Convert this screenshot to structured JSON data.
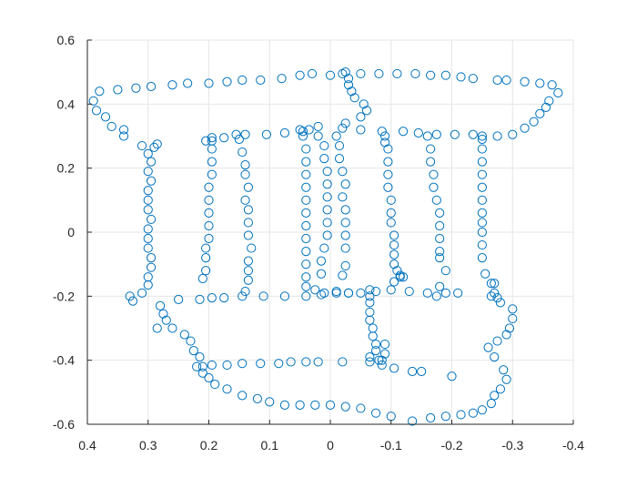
{
  "colors": {
    "background": "#ffffff",
    "axis": "#262626",
    "grid": "#e6e6e6",
    "marker": "#0072bd"
  },
  "chart_data": {
    "type": "scatter",
    "title": "",
    "xlabel": "",
    "ylabel": "",
    "xlim": [
      0.4,
      -0.4
    ],
    "ylim": [
      0.6,
      -0.6
    ],
    "x_reversed": true,
    "y_reversed": true,
    "grid": true,
    "marker": "circle",
    "x_ticks": [
      0.4,
      0.3,
      0.2,
      0.1,
      0,
      -0.1,
      -0.2,
      -0.3,
      -0.4
    ],
    "y_ticks": [
      -0.6,
      -0.4,
      -0.2,
      0,
      0.2,
      0.4,
      0.6
    ],
    "x_tick_labels": [
      "0.4",
      "0.3",
      "0.2",
      "0.1",
      "0",
      "-0.1",
      "-0.2",
      "-0.3",
      "-0.4"
    ],
    "y_tick_labels": [
      "-0.6",
      "-0.4",
      "-0.2",
      "0",
      "0.2",
      "0.4",
      "0.6"
    ],
    "points": [
      [
        0.385,
        0.38
      ],
      [
        0.39,
        0.41
      ],
      [
        0.38,
        0.44
      ],
      [
        0.37,
        0.36
      ],
      [
        0.36,
        0.33
      ],
      [
        0.34,
        0.3
      ],
      [
        0.34,
        0.32
      ],
      [
        0.31,
        0.27
      ],
      [
        0.285,
        0.275
      ],
      [
        0.35,
        0.445
      ],
      [
        0.32,
        0.45
      ],
      [
        0.295,
        0.455
      ],
      [
        0.26,
        0.46
      ],
      [
        0.235,
        0.465
      ],
      [
        0.2,
        0.465
      ],
      [
        0.17,
        0.47
      ],
      [
        0.145,
        0.475
      ],
      [
        0.115,
        0.475
      ],
      [
        0.08,
        0.48
      ],
      [
        0.05,
        0.49
      ],
      [
        0.03,
        0.495
      ],
      [
        0.0,
        0.49
      ],
      [
        -0.02,
        0.495
      ],
      [
        -0.05,
        0.495
      ],
      [
        -0.08,
        0.495
      ],
      [
        -0.11,
        0.495
      ],
      [
        -0.14,
        0.495
      ],
      [
        -0.165,
        0.49
      ],
      [
        -0.19,
        0.49
      ],
      [
        -0.215,
        0.485
      ],
      [
        -0.235,
        0.48
      ],
      [
        -0.275,
        0.475
      ],
      [
        -0.29,
        0.475
      ],
      [
        -0.32,
        0.47
      ],
      [
        -0.345,
        0.465
      ],
      [
        -0.365,
        0.46
      ],
      [
        -0.375,
        0.435
      ],
      [
        -0.36,
        0.41
      ],
      [
        -0.355,
        0.39
      ],
      [
        -0.345,
        0.37
      ],
      [
        -0.335,
        0.345
      ],
      [
        -0.32,
        0.325
      ],
      [
        -0.3,
        0.305
      ],
      [
        -0.275,
        0.3
      ],
      [
        -0.25,
        0.3
      ],
      [
        -0.235,
        0.305
      ],
      [
        0.205,
        0.285
      ],
      [
        0.195,
        0.295
      ],
      [
        0.175,
        0.295
      ],
      [
        0.155,
        0.305
      ],
      [
        0.14,
        0.305
      ],
      [
        0.105,
        0.305
      ],
      [
        0.075,
        0.31
      ],
      [
        0.045,
        0.315
      ],
      [
        0.035,
        0.32
      ],
      [
        0.02,
        0.33
      ],
      [
        -0.02,
        0.325
      ],
      [
        -0.05,
        0.32
      ],
      [
        -0.085,
        0.315
      ],
      [
        -0.12,
        0.315
      ],
      [
        -0.145,
        0.31
      ],
      [
        -0.175,
        0.305
      ],
      [
        -0.205,
        0.305
      ],
      [
        0.33,
        -0.2
      ],
      [
        0.325,
        -0.215
      ],
      [
        0.31,
        -0.19
      ],
      [
        0.3,
        -0.165
      ],
      [
        0.3,
        -0.14
      ],
      [
        0.295,
        -0.11
      ],
      [
        0.295,
        -0.08
      ],
      [
        0.3,
        -0.05
      ],
      [
        0.3,
        -0.02
      ],
      [
        0.3,
        0.01
      ],
      [
        0.295,
        0.04
      ],
      [
        0.3,
        0.07
      ],
      [
        0.3,
        0.1
      ],
      [
        0.3,
        0.13
      ],
      [
        0.295,
        0.16
      ],
      [
        0.3,
        0.19
      ],
      [
        0.295,
        0.22
      ],
      [
        0.3,
        0.245
      ],
      [
        0.29,
        0.265
      ],
      [
        0.28,
        -0.23
      ],
      [
        0.275,
        -0.255
      ],
      [
        0.27,
        -0.275
      ],
      [
        0.285,
        -0.3
      ],
      [
        0.26,
        -0.3
      ],
      [
        0.25,
        -0.21
      ],
      [
        0.215,
        -0.21
      ],
      [
        0.195,
        -0.205
      ],
      [
        0.175,
        -0.205
      ],
      [
        0.145,
        -0.2
      ],
      [
        0.11,
        -0.2
      ],
      [
        0.075,
        -0.2
      ],
      [
        0.04,
        -0.2
      ],
      [
        0.015,
        -0.195
      ],
      [
        -0.01,
        -0.19
      ],
      [
        -0.03,
        -0.19
      ],
      [
        -0.05,
        -0.19
      ],
      [
        -0.075,
        -0.185
      ],
      [
        -0.1,
        -0.18
      ],
      [
        -0.13,
        -0.185
      ],
      [
        -0.16,
        -0.19
      ],
      [
        -0.19,
        -0.19
      ],
      [
        -0.21,
        -0.19
      ],
      [
        0.24,
        -0.32
      ],
      [
        0.23,
        -0.34
      ],
      [
        0.225,
        -0.37
      ],
      [
        0.215,
        -0.39
      ],
      [
        0.22,
        -0.42
      ],
      [
        0.21,
        -0.44
      ],
      [
        0.2,
        -0.455
      ],
      [
        0.19,
        -0.475
      ],
      [
        0.17,
        -0.49
      ],
      [
        0.145,
        -0.51
      ],
      [
        0.12,
        -0.52
      ],
      [
        0.1,
        -0.53
      ],
      [
        0.075,
        -0.54
      ],
      [
        0.05,
        -0.54
      ],
      [
        0.025,
        -0.54
      ],
      [
        0.0,
        -0.54
      ],
      [
        -0.025,
        -0.545
      ],
      [
        -0.05,
        -0.55
      ],
      [
        -0.075,
        -0.565
      ],
      [
        -0.1,
        -0.575
      ],
      [
        -0.135,
        -0.59
      ],
      [
        -0.165,
        -0.58
      ],
      [
        -0.19,
        -0.575
      ],
      [
        -0.215,
        -0.57
      ],
      [
        -0.235,
        -0.565
      ],
      [
        -0.25,
        -0.555
      ],
      [
        -0.265,
        -0.535
      ],
      [
        -0.27,
        -0.51
      ],
      [
        -0.28,
        -0.49
      ],
      [
        -0.29,
        -0.46
      ],
      [
        -0.285,
        -0.43
      ],
      [
        -0.27,
        -0.39
      ],
      [
        -0.26,
        -0.36
      ],
      [
        -0.275,
        -0.34
      ],
      [
        -0.29,
        -0.32
      ],
      [
        -0.295,
        -0.3
      ],
      [
        -0.3,
        -0.27
      ],
      [
        -0.3,
        -0.24
      ],
      [
        -0.28,
        -0.22
      ],
      [
        -0.275,
        -0.205
      ],
      [
        -0.27,
        -0.19
      ],
      [
        -0.265,
        -0.16
      ],
      [
        -0.2,
        -0.45
      ],
      [
        -0.15,
        -0.435
      ],
      [
        -0.135,
        -0.435
      ],
      [
        -0.105,
        -0.425
      ],
      [
        -0.085,
        -0.415
      ],
      [
        0.21,
        -0.42
      ],
      [
        0.195,
        -0.415
      ],
      [
        0.17,
        -0.415
      ],
      [
        0.145,
        -0.41
      ],
      [
        0.115,
        -0.41
      ],
      [
        0.085,
        -0.41
      ],
      [
        0.065,
        -0.405
      ],
      [
        0.04,
        -0.405
      ],
      [
        0.02,
        -0.405
      ],
      [
        -0.02,
        -0.405
      ],
      [
        -0.065,
        -0.405
      ],
      [
        -0.08,
        -0.4
      ],
      [
        0.21,
        -0.145
      ],
      [
        0.205,
        -0.12
      ],
      [
        0.205,
        -0.08
      ],
      [
        0.205,
        -0.05
      ],
      [
        0.2,
        -0.02
      ],
      [
        0.2,
        0.02
      ],
      [
        0.2,
        0.06
      ],
      [
        0.2,
        0.1
      ],
      [
        0.2,
        0.14
      ],
      [
        0.195,
        0.18
      ],
      [
        0.195,
        0.22
      ],
      [
        0.195,
        0.26
      ],
      [
        0.195,
        0.285
      ],
      [
        0.14,
        -0.185
      ],
      [
        0.135,
        -0.15
      ],
      [
        0.135,
        -0.12
      ],
      [
        0.135,
        -0.09
      ],
      [
        0.13,
        -0.05
      ],
      [
        0.135,
        -0.01
      ],
      [
        0.135,
        0.03
      ],
      [
        0.135,
        0.07
      ],
      [
        0.14,
        0.1
      ],
      [
        0.135,
        0.14
      ],
      [
        0.14,
        0.18
      ],
      [
        0.14,
        0.21
      ],
      [
        0.145,
        0.25
      ],
      [
        0.15,
        0.29
      ],
      [
        0.04,
        -0.17
      ],
      [
        0.04,
        -0.14
      ],
      [
        0.04,
        -0.1
      ],
      [
        0.04,
        -0.06
      ],
      [
        0.04,
        -0.02
      ],
      [
        0.04,
        0.02
      ],
      [
        0.04,
        0.06
      ],
      [
        0.04,
        0.1
      ],
      [
        0.04,
        0.14
      ],
      [
        0.04,
        0.18
      ],
      [
        0.04,
        0.22
      ],
      [
        0.04,
        0.26
      ],
      [
        0.045,
        0.3
      ],
      [
        0.025,
        -0.18
      ],
      [
        0.01,
        -0.19
      ],
      [
        -0.01,
        -0.185
      ],
      [
        -0.03,
        -0.19
      ],
      [
        -0.02,
        -0.135
      ],
      [
        -0.025,
        -0.105
      ],
      [
        0.015,
        -0.13
      ],
      [
        0.015,
        -0.09
      ],
      [
        0.01,
        -0.05
      ],
      [
        0.005,
        -0.01
      ],
      [
        0.005,
        0.03
      ],
      [
        0.005,
        0.07
      ],
      [
        0.005,
        0.11
      ],
      [
        0.005,
        0.15
      ],
      [
        0.005,
        0.19
      ],
      [
        0.01,
        0.23
      ],
      [
        0.01,
        0.27
      ],
      [
        0.02,
        0.3
      ],
      [
        -0.025,
        -0.05
      ],
      [
        -0.025,
        -0.01
      ],
      [
        -0.025,
        0.03
      ],
      [
        -0.025,
        0.07
      ],
      [
        -0.02,
        0.11
      ],
      [
        -0.025,
        0.15
      ],
      [
        -0.02,
        0.19
      ],
      [
        -0.015,
        0.23
      ],
      [
        -0.015,
        0.27
      ],
      [
        -0.01,
        0.3
      ],
      [
        -0.065,
        -0.39
      ],
      [
        -0.075,
        -0.37
      ],
      [
        -0.075,
        -0.35
      ],
      [
        -0.07,
        -0.325
      ],
      [
        -0.07,
        -0.3
      ],
      [
        -0.065,
        -0.275
      ],
      [
        -0.065,
        -0.25
      ],
      [
        -0.065,
        -0.22
      ],
      [
        -0.065,
        -0.2
      ],
      [
        -0.065,
        -0.18
      ],
      [
        -0.085,
        -0.4
      ],
      [
        -0.09,
        -0.38
      ],
      [
        -0.09,
        -0.35
      ],
      [
        -0.105,
        -0.155
      ],
      [
        -0.115,
        -0.14
      ],
      [
        -0.11,
        -0.12
      ],
      [
        -0.105,
        -0.1
      ],
      [
        -0.105,
        -0.07
      ],
      [
        -0.105,
        -0.04
      ],
      [
        -0.105,
        -0.01
      ],
      [
        -0.1,
        0.03
      ],
      [
        -0.1,
        0.06
      ],
      [
        -0.1,
        0.1
      ],
      [
        -0.095,
        0.14
      ],
      [
        -0.095,
        0.18
      ],
      [
        -0.095,
        0.22
      ],
      [
        -0.095,
        0.26
      ],
      [
        -0.09,
        0.28
      ],
      [
        -0.09,
        0.3
      ],
      [
        -0.12,
        -0.14
      ],
      [
        -0.115,
        -0.135
      ],
      [
        -0.175,
        -0.2
      ],
      [
        -0.18,
        -0.17
      ],
      [
        -0.19,
        -0.12
      ],
      [
        -0.18,
        -0.08
      ],
      [
        -0.18,
        -0.06
      ],
      [
        -0.18,
        -0.02
      ],
      [
        -0.18,
        0.02
      ],
      [
        -0.18,
        0.06
      ],
      [
        -0.175,
        0.1
      ],
      [
        -0.17,
        0.14
      ],
      [
        -0.17,
        0.18
      ],
      [
        -0.165,
        0.22
      ],
      [
        -0.165,
        0.26
      ],
      [
        -0.16,
        0.3
      ],
      [
        -0.265,
        -0.2
      ],
      [
        -0.27,
        -0.16
      ],
      [
        -0.255,
        -0.13
      ],
      [
        -0.25,
        -0.08
      ],
      [
        -0.25,
        -0.04
      ],
      [
        -0.25,
        0.0
      ],
      [
        -0.25,
        0.03
      ],
      [
        -0.25,
        0.06
      ],
      [
        -0.25,
        0.1
      ],
      [
        -0.25,
        0.14
      ],
      [
        -0.25,
        0.18
      ],
      [
        -0.25,
        0.22
      ],
      [
        -0.25,
        0.26
      ],
      [
        -0.25,
        0.29
      ],
      [
        0.05,
        0.32
      ],
      [
        -0.025,
        0.34
      ],
      [
        -0.05,
        0.36
      ],
      [
        -0.06,
        0.38
      ],
      [
        -0.055,
        0.4
      ],
      [
        -0.04,
        0.42
      ],
      [
        -0.035,
        0.44
      ],
      [
        -0.03,
        0.46
      ],
      [
        -0.03,
        0.48
      ],
      [
        -0.025,
        0.5
      ]
    ]
  }
}
